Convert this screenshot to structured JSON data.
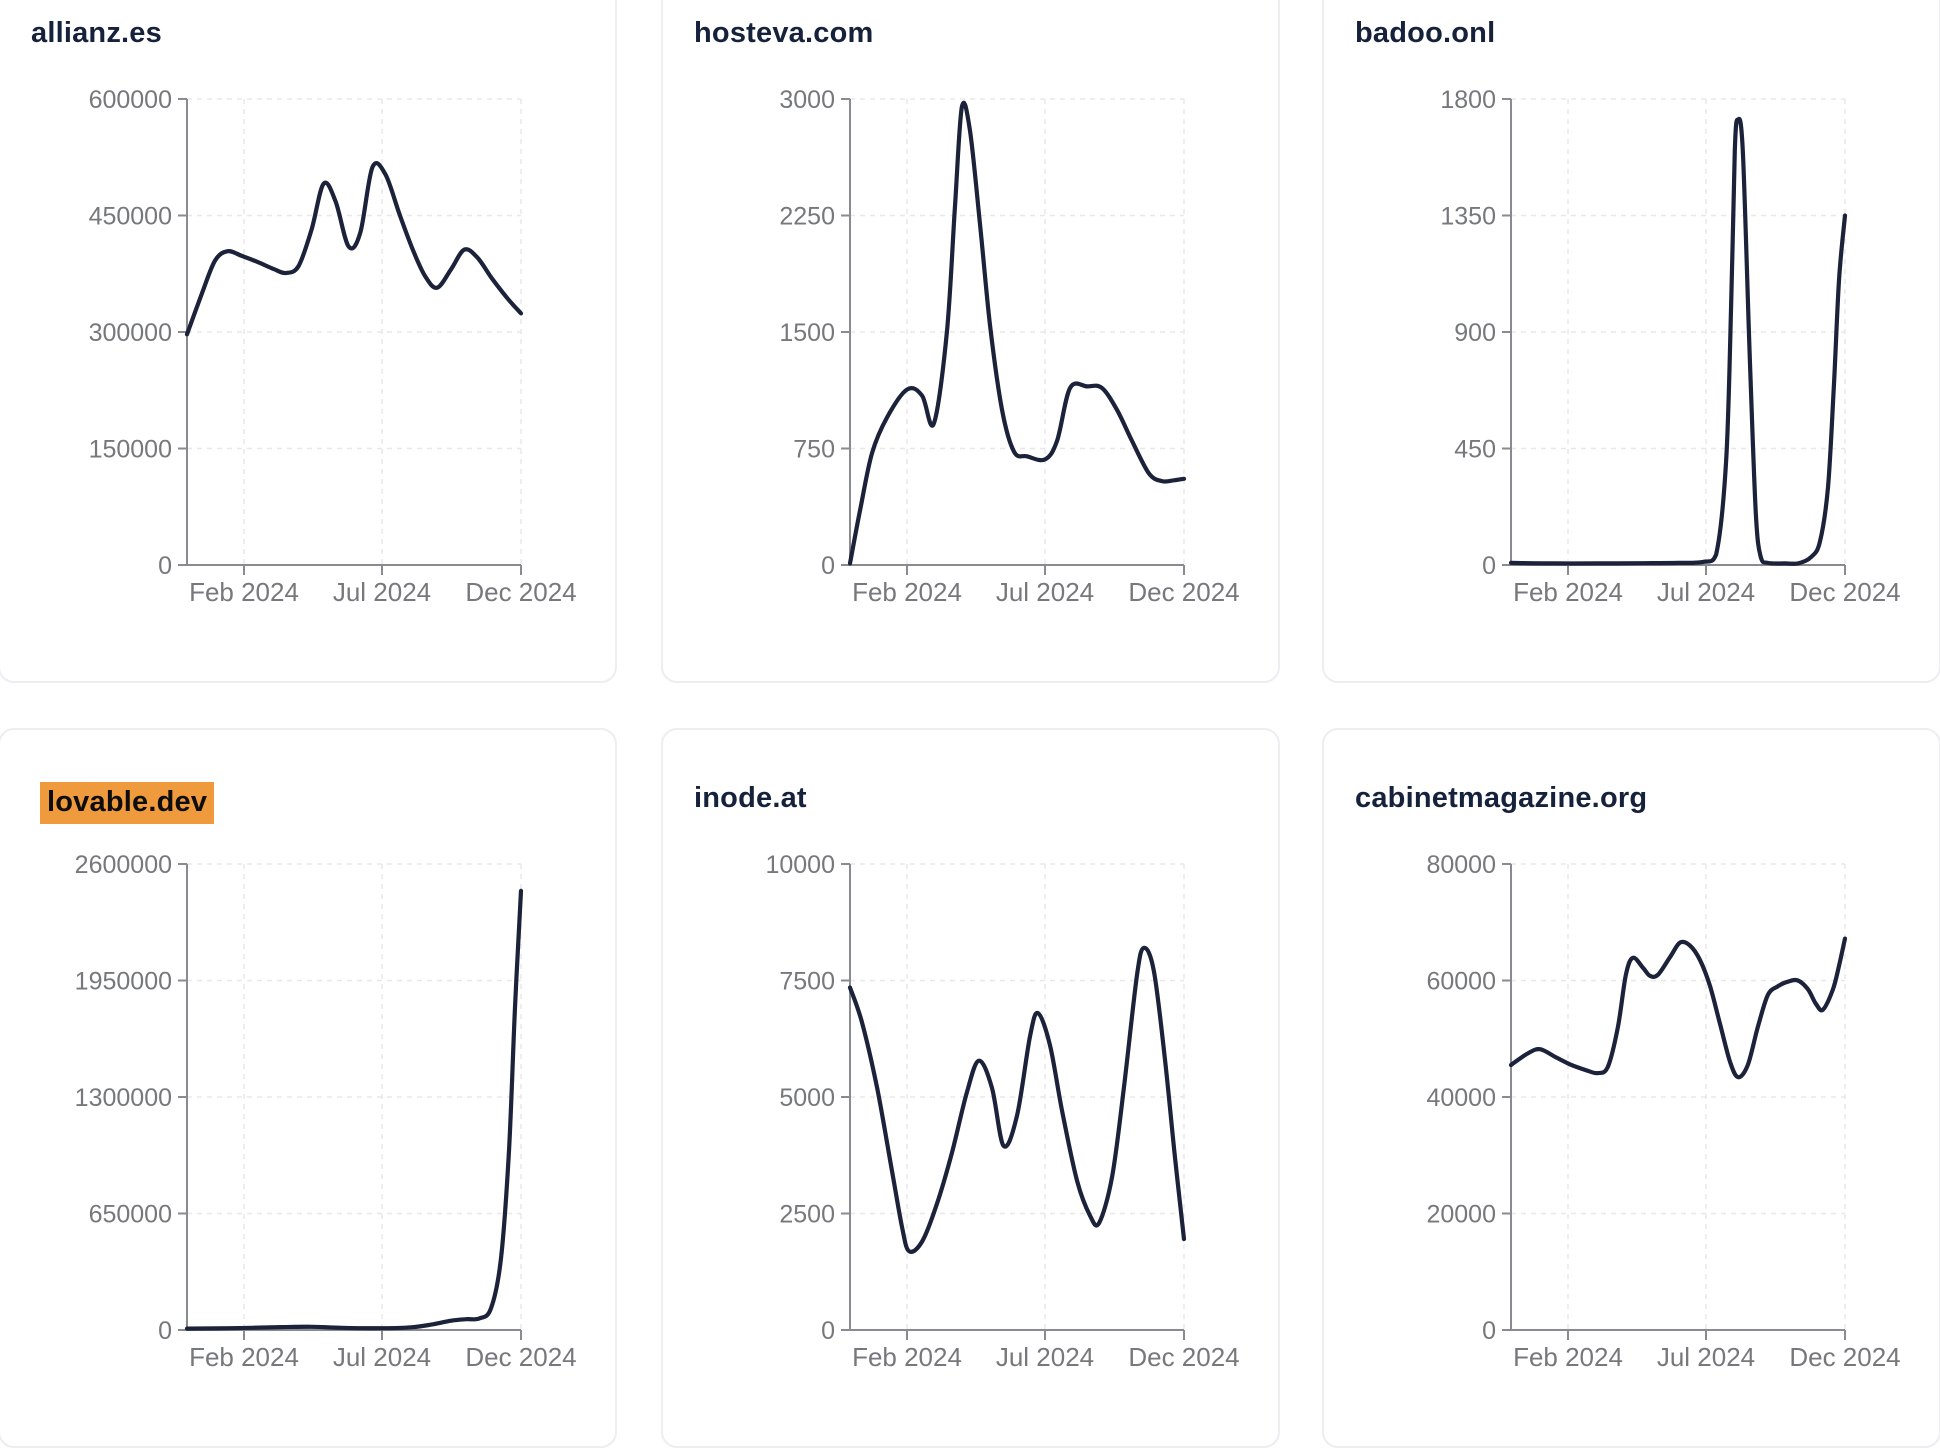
{
  "page": {
    "background": "#ffffff",
    "description_labels": {
      "x_tick_labels": [
        "Feb 2024",
        "Jul 2024",
        "Dec 2024"
      ]
    }
  },
  "style": {
    "line_color": "#1b2239",
    "axis_color": "#8a8b90",
    "grid_color": "#e8e8eb",
    "tick_label_color": "#77787c",
    "title_color": "#16213c",
    "highlight_bg": "#f09a3e",
    "highlight_text": "#0d0d0d"
  },
  "chart_data": [
    {
      "type": "line",
      "title": "allianz.es",
      "highlighted": false,
      "xlabel": "",
      "ylabel": "",
      "x_ticks": [
        "Feb 2024",
        "Jul 2024",
        "Dec 2024"
      ],
      "y_ticks": [
        "600000",
        "450000",
        "300000",
        "150000",
        "0"
      ],
      "ylim": [
        0,
        600000
      ],
      "grid": true,
      "points": [
        [
          0.0,
          297000
        ],
        [
          0.045,
          350000
        ],
        [
          0.084,
          392000
        ],
        [
          0.122,
          404000
        ],
        [
          0.164,
          398000
        ],
        [
          0.212,
          390000
        ],
        [
          0.26,
          381000
        ],
        [
          0.296,
          376000
        ],
        [
          0.334,
          385000
        ],
        [
          0.373,
          432000
        ],
        [
          0.409,
          491000
        ],
        [
          0.445,
          468000
        ],
        [
          0.484,
          410000
        ],
        [
          0.519,
          428000
        ],
        [
          0.555,
          512000
        ],
        [
          0.594,
          503000
        ],
        [
          0.636,
          452000
        ],
        [
          0.675,
          407000
        ],
        [
          0.713,
          372000
        ],
        [
          0.749,
          357000
        ],
        [
          0.791,
          381000
        ],
        [
          0.83,
          406000
        ],
        [
          0.869,
          396000
        ],
        [
          0.913,
          369000
        ],
        [
          0.958,
          344000
        ],
        [
          1.0,
          324000
        ]
      ]
    },
    {
      "type": "line",
      "title": "hosteva.com",
      "highlighted": false,
      "xlabel": "",
      "ylabel": "",
      "x_ticks": [
        "Feb 2024",
        "Jul 2024",
        "Dec 2024"
      ],
      "y_ticks": [
        "3000",
        "2250",
        "1500",
        "750",
        "0"
      ],
      "ylim": [
        0,
        3000
      ],
      "grid": true,
      "points": [
        [
          0.0,
          10
        ],
        [
          0.03,
          350
        ],
        [
          0.066,
          720
        ],
        [
          0.111,
          950
        ],
        [
          0.171,
          1130
        ],
        [
          0.216,
          1090
        ],
        [
          0.251,
          910
        ],
        [
          0.29,
          1500
        ],
        [
          0.314,
          2300
        ],
        [
          0.335,
          2950
        ],
        [
          0.359,
          2800
        ],
        [
          0.389,
          2200
        ],
        [
          0.419,
          1550
        ],
        [
          0.455,
          1000
        ],
        [
          0.491,
          730
        ],
        [
          0.53,
          700
        ],
        [
          0.584,
          680
        ],
        [
          0.62,
          800
        ],
        [
          0.659,
          1140
        ],
        [
          0.71,
          1150
        ],
        [
          0.754,
          1140
        ],
        [
          0.799,
          1000
        ],
        [
          0.844,
          800
        ],
        [
          0.895,
          590
        ],
        [
          0.934,
          540
        ],
        [
          0.97,
          545
        ],
        [
          1.0,
          555
        ]
      ]
    },
    {
      "type": "line",
      "title": "badoo.onl",
      "highlighted": false,
      "xlabel": "",
      "ylabel": "",
      "x_ticks": [
        "Feb 2024",
        "Jul 2024",
        "Dec 2024"
      ],
      "y_ticks": [
        "1800",
        "1350",
        "900",
        "450",
        "0"
      ],
      "ylim": [
        0,
        1800
      ],
      "grid": true,
      "points": [
        [
          0.0,
          8
        ],
        [
          0.13,
          6
        ],
        [
          0.26,
          6
        ],
        [
          0.4,
          7
        ],
        [
          0.5,
          8
        ],
        [
          0.575,
          12
        ],
        [
          0.614,
          40
        ],
        [
          0.644,
          400
        ],
        [
          0.659,
          1000
        ],
        [
          0.67,
          1600
        ],
        [
          0.679,
          1720
        ],
        [
          0.694,
          1600
        ],
        [
          0.715,
          800
        ],
        [
          0.733,
          200
        ],
        [
          0.748,
          30
        ],
        [
          0.769,
          8
        ],
        [
          0.82,
          6
        ],
        [
          0.859,
          6
        ],
        [
          0.898,
          30
        ],
        [
          0.925,
          90
        ],
        [
          0.949,
          300
        ],
        [
          0.967,
          700
        ],
        [
          0.982,
          1100
        ],
        [
          1.0,
          1350
        ]
      ]
    },
    {
      "type": "line",
      "title": "lovable.dev",
      "highlighted": true,
      "xlabel": "",
      "ylabel": "",
      "x_ticks": [
        "Feb 2024",
        "Jul 2024",
        "Dec 2024"
      ],
      "y_ticks": [
        "2600000",
        "1950000",
        "1300000",
        "650000",
        "0"
      ],
      "ylim": [
        0,
        2600000
      ],
      "grid": true,
      "points": [
        [
          0.0,
          8000
        ],
        [
          0.134,
          10000
        ],
        [
          0.284,
          16000
        ],
        [
          0.373,
          18000
        ],
        [
          0.463,
          12000
        ],
        [
          0.588,
          10000
        ],
        [
          0.672,
          15000
        ],
        [
          0.731,
          30000
        ],
        [
          0.791,
          52000
        ],
        [
          0.836,
          60000
        ],
        [
          0.875,
          65000
        ],
        [
          0.91,
          120000
        ],
        [
          0.94,
          400000
        ],
        [
          0.964,
          1000000
        ],
        [
          0.982,
          1800000
        ],
        [
          1.0,
          2450000
        ]
      ]
    },
    {
      "type": "line",
      "title": "inode.at",
      "highlighted": false,
      "xlabel": "",
      "ylabel": "",
      "x_ticks": [
        "Feb 2024",
        "Jul 2024",
        "Dec 2024"
      ],
      "y_ticks": [
        "10000",
        "7500",
        "5000",
        "2500",
        "0"
      ],
      "ylim": [
        0,
        10000
      ],
      "grid": true,
      "points": [
        [
          0.0,
          7350
        ],
        [
          0.036,
          6600
        ],
        [
          0.081,
          5200
        ],
        [
          0.126,
          3400
        ],
        [
          0.156,
          2200
        ],
        [
          0.177,
          1690
        ],
        [
          0.216,
          1900
        ],
        [
          0.26,
          2700
        ],
        [
          0.305,
          3800
        ],
        [
          0.35,
          5100
        ],
        [
          0.386,
          5780
        ],
        [
          0.425,
          5200
        ],
        [
          0.46,
          3950
        ],
        [
          0.5,
          4600
        ],
        [
          0.539,
          6300
        ],
        [
          0.563,
          6800
        ],
        [
          0.599,
          6100
        ],
        [
          0.635,
          4700
        ],
        [
          0.68,
          3200
        ],
        [
          0.719,
          2450
        ],
        [
          0.746,
          2300
        ],
        [
          0.785,
          3300
        ],
        [
          0.82,
          5200
        ],
        [
          0.859,
          7600
        ],
        [
          0.88,
          8200
        ],
        [
          0.91,
          7700
        ],
        [
          0.943,
          5800
        ],
        [
          0.973,
          3700
        ],
        [
          1.0,
          1950
        ]
      ]
    },
    {
      "type": "line",
      "title": "cabinetmagazine.org",
      "highlighted": false,
      "xlabel": "",
      "ylabel": "",
      "x_ticks": [
        "Feb 2024",
        "Jul 2024",
        "Dec 2024"
      ],
      "y_ticks": [
        "80000",
        "60000",
        "40000",
        "20000",
        "0"
      ],
      "ylim": [
        0,
        80000
      ],
      "grid": true,
      "points": [
        [
          0.0,
          45500
        ],
        [
          0.051,
          47500
        ],
        [
          0.087,
          48200
        ],
        [
          0.135,
          46800
        ],
        [
          0.177,
          45600
        ],
        [
          0.225,
          44600
        ],
        [
          0.26,
          44100
        ],
        [
          0.29,
          45200
        ],
        [
          0.32,
          52000
        ],
        [
          0.344,
          61000
        ],
        [
          0.365,
          63900
        ],
        [
          0.395,
          62200
        ],
        [
          0.416,
          60800
        ],
        [
          0.44,
          61000
        ],
        [
          0.476,
          64000
        ],
        [
          0.506,
          66500
        ],
        [
          0.536,
          66000
        ],
        [
          0.566,
          63500
        ],
        [
          0.596,
          59000
        ],
        [
          0.626,
          52500
        ],
        [
          0.656,
          46000
        ],
        [
          0.68,
          43400
        ],
        [
          0.709,
          45500
        ],
        [
          0.739,
          52000
        ],
        [
          0.769,
          57500
        ],
        [
          0.799,
          59000
        ],
        [
          0.829,
          59800
        ],
        [
          0.859,
          60000
        ],
        [
          0.889,
          58500
        ],
        [
          0.913,
          56000
        ],
        [
          0.934,
          55000
        ],
        [
          0.964,
          58500
        ],
        [
          0.982,
          62500
        ],
        [
          1.0,
          67200
        ]
      ]
    }
  ]
}
